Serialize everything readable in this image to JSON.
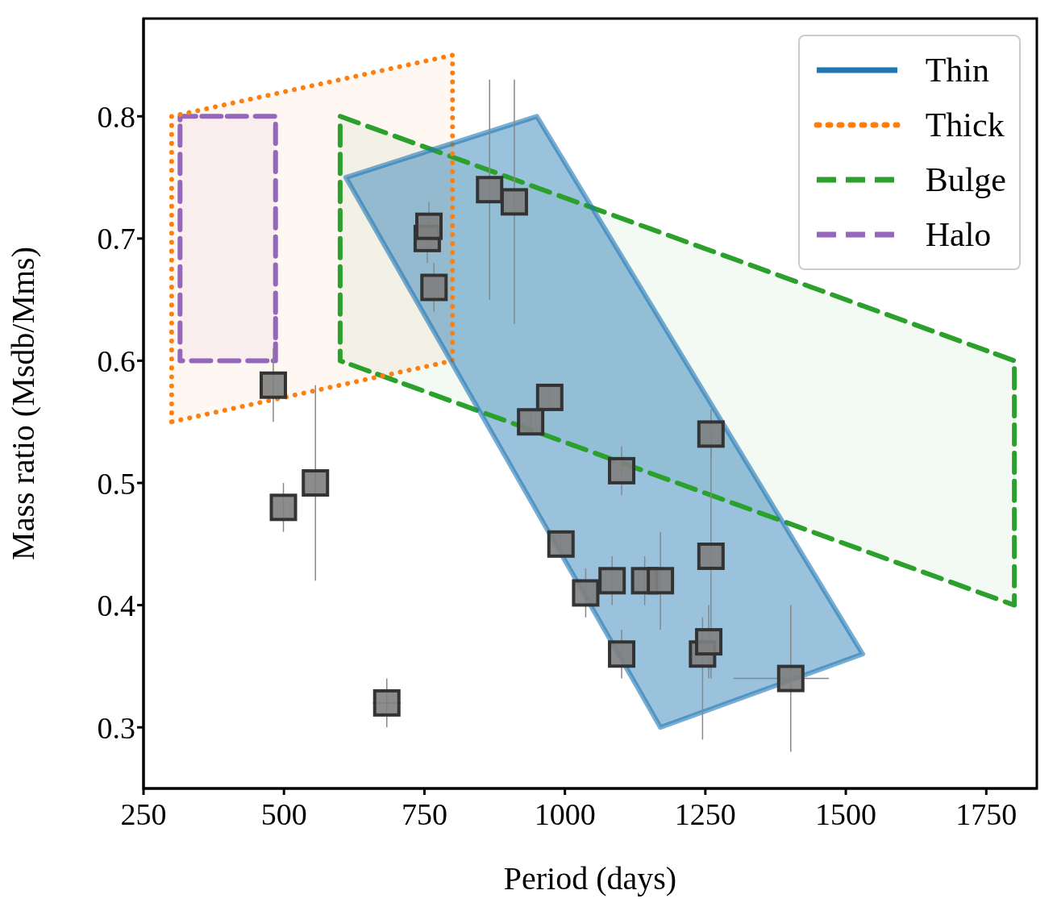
{
  "chart_data": {
    "type": "scatter",
    "xlabel": "Period (days)",
    "ylabel": "Mass ratio (Msdb/Mms)",
    "xlim": [
      250,
      1840
    ],
    "ylim": [
      0.25,
      0.88
    ],
    "xticks": [
      250,
      500,
      750,
      1000,
      1250,
      1500,
      1750
    ],
    "yticks": [
      0.3,
      0.4,
      0.5,
      0.6,
      0.7,
      0.8
    ],
    "legend": "top right",
    "grid": false,
    "marker": "square",
    "series": [
      {
        "type": "area",
        "name": "Thin",
        "color": "#1f77b4",
        "line_style": "solid",
        "marker": "none",
        "x": [
          610,
          950,
          1530,
          1170,
          610
        ],
        "values": [
          0.75,
          0.8,
          0.36,
          0.3,
          0.75
        ]
      },
      {
        "type": "area",
        "name": "Thick",
        "color": "#ff7f0e",
        "line_style": "dotted",
        "marker": "none",
        "x": [
          300,
          300,
          800,
          800,
          300
        ],
        "values": [
          0.55,
          0.8,
          0.85,
          0.6,
          0.55
        ]
      },
      {
        "type": "area",
        "name": "Bulge",
        "color": "#2ca02c",
        "line_style": "dashed",
        "marker": "none",
        "x": [
          600,
          600,
          1800,
          1800,
          600
        ],
        "values": [
          0.6,
          0.8,
          0.6,
          0.4,
          0.6
        ]
      },
      {
        "type": "area",
        "name": "Halo",
        "color": "#9467bd",
        "line_style": "dashed",
        "marker": "none",
        "x": [
          315,
          315,
          485,
          485,
          315
        ],
        "values": [
          0.6,
          0.8,
          0.8,
          0.6,
          0.6
        ]
      },
      {
        "color": "#7f7f7f",
        "x": [
          481,
          499,
          556,
          683,
          755,
          758,
          767,
          866,
          910,
          939,
          973,
          993,
          1037,
          1084,
          1101,
          1101,
          1142,
          1170,
          1245,
          1256,
          1260,
          1260,
          1402
        ],
        "values": [
          0.58,
          0.48,
          0.5,
          0.32,
          0.7,
          0.71,
          0.66,
          0.74,
          0.73,
          0.55,
          0.57,
          0.45,
          0.41,
          0.42,
          0.51,
          0.36,
          0.42,
          0.42,
          0.36,
          0.37,
          0.54,
          0.44,
          0.34
        ],
        "errors": [
          0.03,
          0.02,
          0.08,
          0.02,
          0.02,
          0.02,
          0.02,
          [
            0.65,
            0.83
          ],
          [
            0.63,
            0.83
          ],
          0.01,
          0.01,
          0.01,
          0.02,
          0.02,
          0.02,
          0.02,
          0.02,
          0.04,
          [
            0.29,
            0.39
          ],
          0.03,
          0.02,
          0.1,
          0.06
        ],
        "xerrors": [
          null,
          null,
          null,
          25,
          null,
          null,
          null,
          null,
          null,
          null,
          null,
          null,
          null,
          null,
          null,
          null,
          null,
          null,
          null,
          null,
          null,
          null,
          [
            1300,
            1470
          ]
        ]
      }
    ]
  }
}
